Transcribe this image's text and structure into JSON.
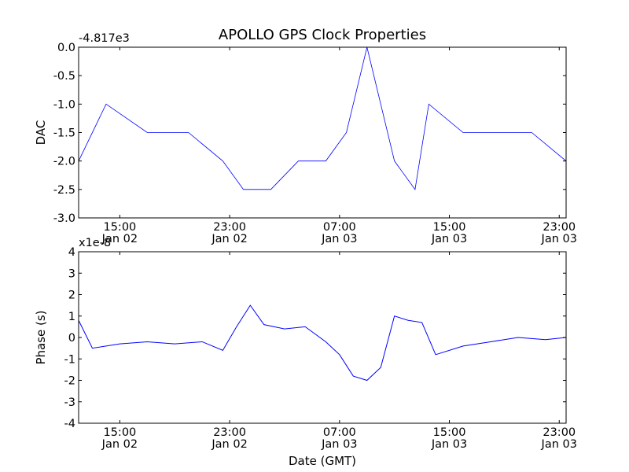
{
  "chart_data": [
    {
      "type": "line",
      "title": "APOLLO GPS Clock Properties",
      "ylabel": "DAC",
      "xlabel": "",
      "y_offset_label": "-4.817e3",
      "ylim": [
        -3.0,
        0.0
      ],
      "yticks": [
        "0.0",
        "-0.5",
        "-1.0",
        "-1.5",
        "-2.0",
        "-2.5",
        "-3.0"
      ],
      "xticks": [
        {
          "time": "15:00",
          "date": "Jan 02"
        },
        {
          "time": "23:00",
          "date": "Jan 02"
        },
        {
          "time": "07:00",
          "date": "Jan 03"
        },
        {
          "time": "15:00",
          "date": "Jan 03"
        },
        {
          "time": "23:00",
          "date": "Jan 03"
        }
      ],
      "xlim": [
        "Jan 02 12:00",
        "Jan 03 23:30"
      ],
      "grid": false,
      "color": "#0000ff",
      "series": [
        {
          "x": [
            "Jan 02 12:00",
            "Jan 02 14:00",
            "Jan 02 17:00",
            "Jan 02 20:00",
            "Jan 02 22:30",
            "Jan 03 00:00",
            "Jan 03 02:00",
            "Jan 03 04:00",
            "Jan 03 06:00",
            "Jan 03 07:30",
            "Jan 03 08:00",
            "Jan 03 09:00",
            "Jan 03 10:00",
            "Jan 03 11:00",
            "Jan 03 12:30",
            "Jan 03 13:30",
            "Jan 03 16:00",
            "Jan 03 19:00",
            "Jan 03 21:00",
            "Jan 03 23:30"
          ],
          "y": [
            -2.0,
            -1.0,
            -1.5,
            -1.5,
            -2.0,
            -2.5,
            -2.5,
            -2.0,
            -2.0,
            -1.5,
            -1.0,
            0.0,
            -1.0,
            -2.0,
            -2.5,
            -1.0,
            -1.5,
            -1.5,
            -1.5,
            -2.0
          ]
        }
      ]
    },
    {
      "type": "line",
      "title": "",
      "ylabel": "Phase (s)",
      "xlabel": "Date (GMT)",
      "y_offset_label": "x1e-8",
      "ylim": [
        -4,
        4
      ],
      "yticks": [
        "4",
        "3",
        "2",
        "1",
        "0",
        "-1",
        "-2",
        "-3",
        "-4"
      ],
      "xticks": [
        {
          "time": "15:00",
          "date": "Jan 02"
        },
        {
          "time": "23:00",
          "date": "Jan 02"
        },
        {
          "time": "07:00",
          "date": "Jan 03"
        },
        {
          "time": "15:00",
          "date": "Jan 03"
        },
        {
          "time": "23:00",
          "date": "Jan 03"
        }
      ],
      "xlim": [
        "Jan 02 12:00",
        "Jan 03 23:30"
      ],
      "grid": false,
      "color": "#0000ff",
      "series": [
        {
          "x": [
            "Jan 02 12:00",
            "Jan 02 13:00",
            "Jan 02 15:00",
            "Jan 02 17:00",
            "Jan 02 19:00",
            "Jan 02 21:00",
            "Jan 02 22:30",
            "Jan 02 23:30",
            "Jan 03 00:30",
            "Jan 03 01:30",
            "Jan 03 03:00",
            "Jan 03 04:30",
            "Jan 03 06:00",
            "Jan 03 07:00",
            "Jan 03 08:00",
            "Jan 03 09:00",
            "Jan 03 10:00",
            "Jan 03 11:00",
            "Jan 03 12:00",
            "Jan 03 13:00",
            "Jan 03 14:00",
            "Jan 03 16:00",
            "Jan 03 18:00",
            "Jan 03 20:00",
            "Jan 03 22:00",
            "Jan 03 23:30"
          ],
          "y": [
            0.8,
            -0.5,
            -0.3,
            -0.2,
            -0.3,
            -0.2,
            -0.6,
            0.5,
            1.5,
            0.6,
            0.4,
            0.5,
            -0.2,
            -0.8,
            -1.8,
            -2.0,
            -1.4,
            1.0,
            0.8,
            0.7,
            -0.8,
            -0.4,
            -0.2,
            0.0,
            -0.1,
            0.0
          ]
        }
      ]
    }
  ]
}
